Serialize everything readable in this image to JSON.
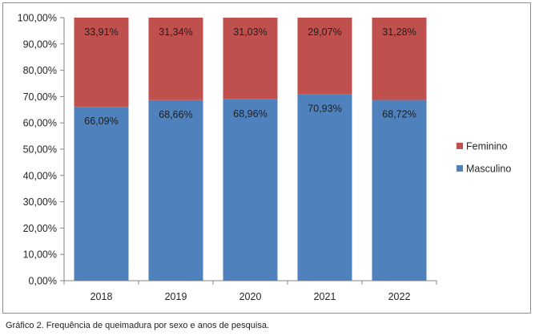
{
  "chart_data": {
    "type": "bar",
    "stacked": true,
    "categories": [
      "2018",
      "2019",
      "2020",
      "2021",
      "2022"
    ],
    "series": [
      {
        "name": "Masculino",
        "color": "#4f81bd",
        "values": [
          66.09,
          68.66,
          68.96,
          70.93,
          68.72
        ],
        "labels": [
          "66,09%",
          "68,66%",
          "68,96%",
          "70,93%",
          "68,72%"
        ]
      },
      {
        "name": "Feminino",
        "color": "#c0504d",
        "values": [
          33.91,
          31.34,
          31.03,
          29.07,
          31.28
        ],
        "labels": [
          "33,91%",
          "31,34%",
          "31,03%",
          "29,07%",
          "31,28%"
        ]
      }
    ],
    "ylim": [
      0,
      100
    ],
    "yticks": [
      "0,00%",
      "10,00%",
      "20,00%",
      "30,00%",
      "40,00%",
      "50,00%",
      "60,00%",
      "70,00%",
      "80,00%",
      "90,00%",
      "100,00%"
    ],
    "legend_position": "right",
    "legend_order": [
      "Feminino",
      "Masculino"
    ],
    "grid": false,
    "title": "",
    "xlabel": "",
    "ylabel": ""
  },
  "caption": {
    "label": "Gráfico 2.",
    "text": "Frequência de queimadura por sexo e anos de pesquisa."
  }
}
